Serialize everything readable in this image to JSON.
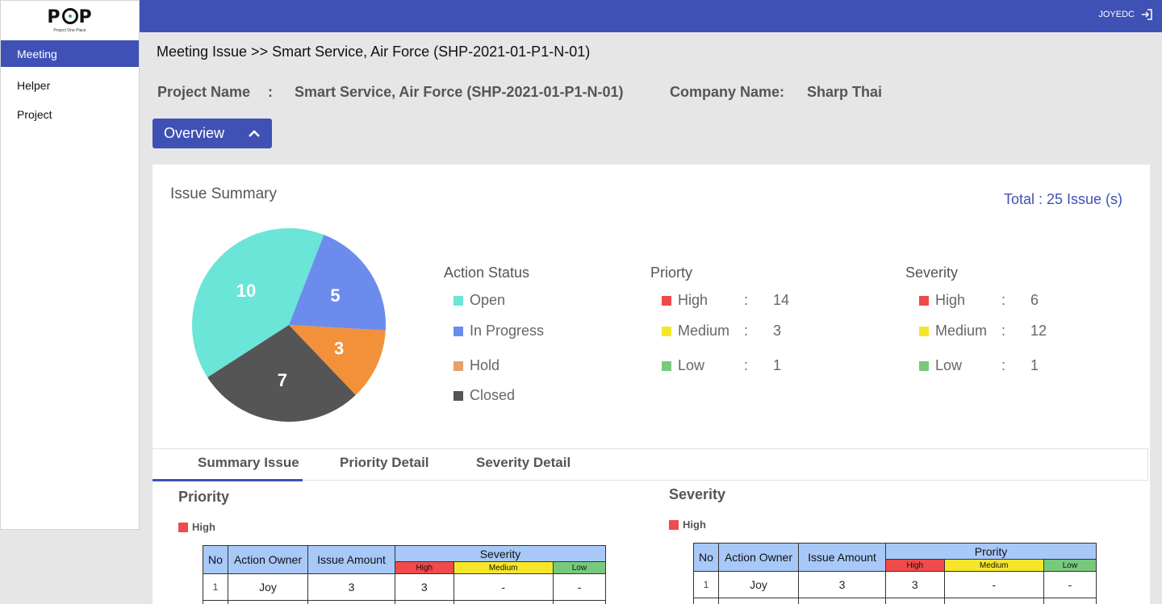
{
  "app": {
    "logo_text": "POP",
    "logo_sub": "Project One Place",
    "user": "JOYEDC"
  },
  "sidebar": {
    "items": [
      {
        "label": "Meeting",
        "active": true
      },
      {
        "label": "Helper",
        "active": false
      },
      {
        "label": "Project",
        "active": false
      }
    ]
  },
  "breadcrumb": "Meeting Issue >> Smart Service, Air Force (SHP-2021-01-P1-N-01)",
  "project": {
    "name_label": "Project Name",
    "sep": ":",
    "name_value": "Smart Service, Air Force (SHP-2021-01-P1-N-01)",
    "company_label": "Company Name",
    "company_sep": ":",
    "company_value": "Sharp Thai"
  },
  "overview_label": "Overview",
  "summary": {
    "title": "Issue Summary",
    "total": "Total : 25 Issue (s)"
  },
  "chart_data": {
    "type": "pie",
    "slices": [
      {
        "label": "Open",
        "value": 10,
        "color": "#6be5d8"
      },
      {
        "label": "In Progress",
        "value": 5,
        "color": "#6b8ced"
      },
      {
        "label": "Hold",
        "value": 3,
        "color": "#f2913a"
      },
      {
        "label": "Closed",
        "value": 7,
        "color": "#555555"
      }
    ]
  },
  "legend": {
    "action_status": {
      "title": "Action Status",
      "items": [
        {
          "label": "Open",
          "color": "#6be5d8"
        },
        {
          "label": "In Progress",
          "color": "#6b8ced"
        },
        {
          "label": "Hold",
          "color": "#e8a066"
        },
        {
          "label": "Closed",
          "color": "#555555"
        }
      ]
    },
    "priority": {
      "title": "Priorty",
      "items": [
        {
          "label": "High",
          "sep": ":",
          "value": "14",
          "color": "#f04a4a"
        },
        {
          "label": "Medium",
          "sep": ":",
          "value": "3",
          "color": "#f5e62a"
        },
        {
          "label": "Low",
          "sep": ":",
          "value": "1",
          "color": "#78c97c"
        }
      ]
    },
    "severity": {
      "title": "Severity",
      "items": [
        {
          "label": "High",
          "sep": ":",
          "value": "6",
          "color": "#f04a4a"
        },
        {
          "label": "Medium",
          "sep": ":",
          "value": "12",
          "color": "#f5e62a"
        },
        {
          "label": "Low",
          "sep": ":",
          "value": "1",
          "color": "#78c97c"
        }
      ]
    }
  },
  "tabs": [
    {
      "label": "Summary  Issue",
      "active": true
    },
    {
      "label": "Priority Detail",
      "active": false
    },
    {
      "label": "Severity Detail",
      "active": false
    }
  ],
  "priority_section": {
    "title": "Priority",
    "chip": "High",
    "table": {
      "headers": [
        "No",
        "Action Owner",
        "Issue Amount",
        "Severity"
      ],
      "sub_headers": [
        "High",
        "Medium",
        "Low"
      ],
      "rows": [
        [
          "1",
          "Joy",
          "3",
          "3",
          "-",
          "-"
        ]
      ]
    }
  },
  "severity_section": {
    "title": "Severity",
    "chip": "High",
    "table": {
      "headers": [
        "No",
        "Action Owner",
        "Issue Amount",
        "Prority"
      ],
      "sub_headers": [
        "High",
        "Medium",
        "Low"
      ],
      "rows": [
        [
          "1",
          "Joy",
          "3",
          "3",
          "-",
          "-"
        ]
      ]
    }
  },
  "colors": {
    "primary": "#3f51b5",
    "high": "#f04a4a",
    "medium": "#f5e62a",
    "low": "#78c97c",
    "table_header": "#a8c8f8"
  }
}
